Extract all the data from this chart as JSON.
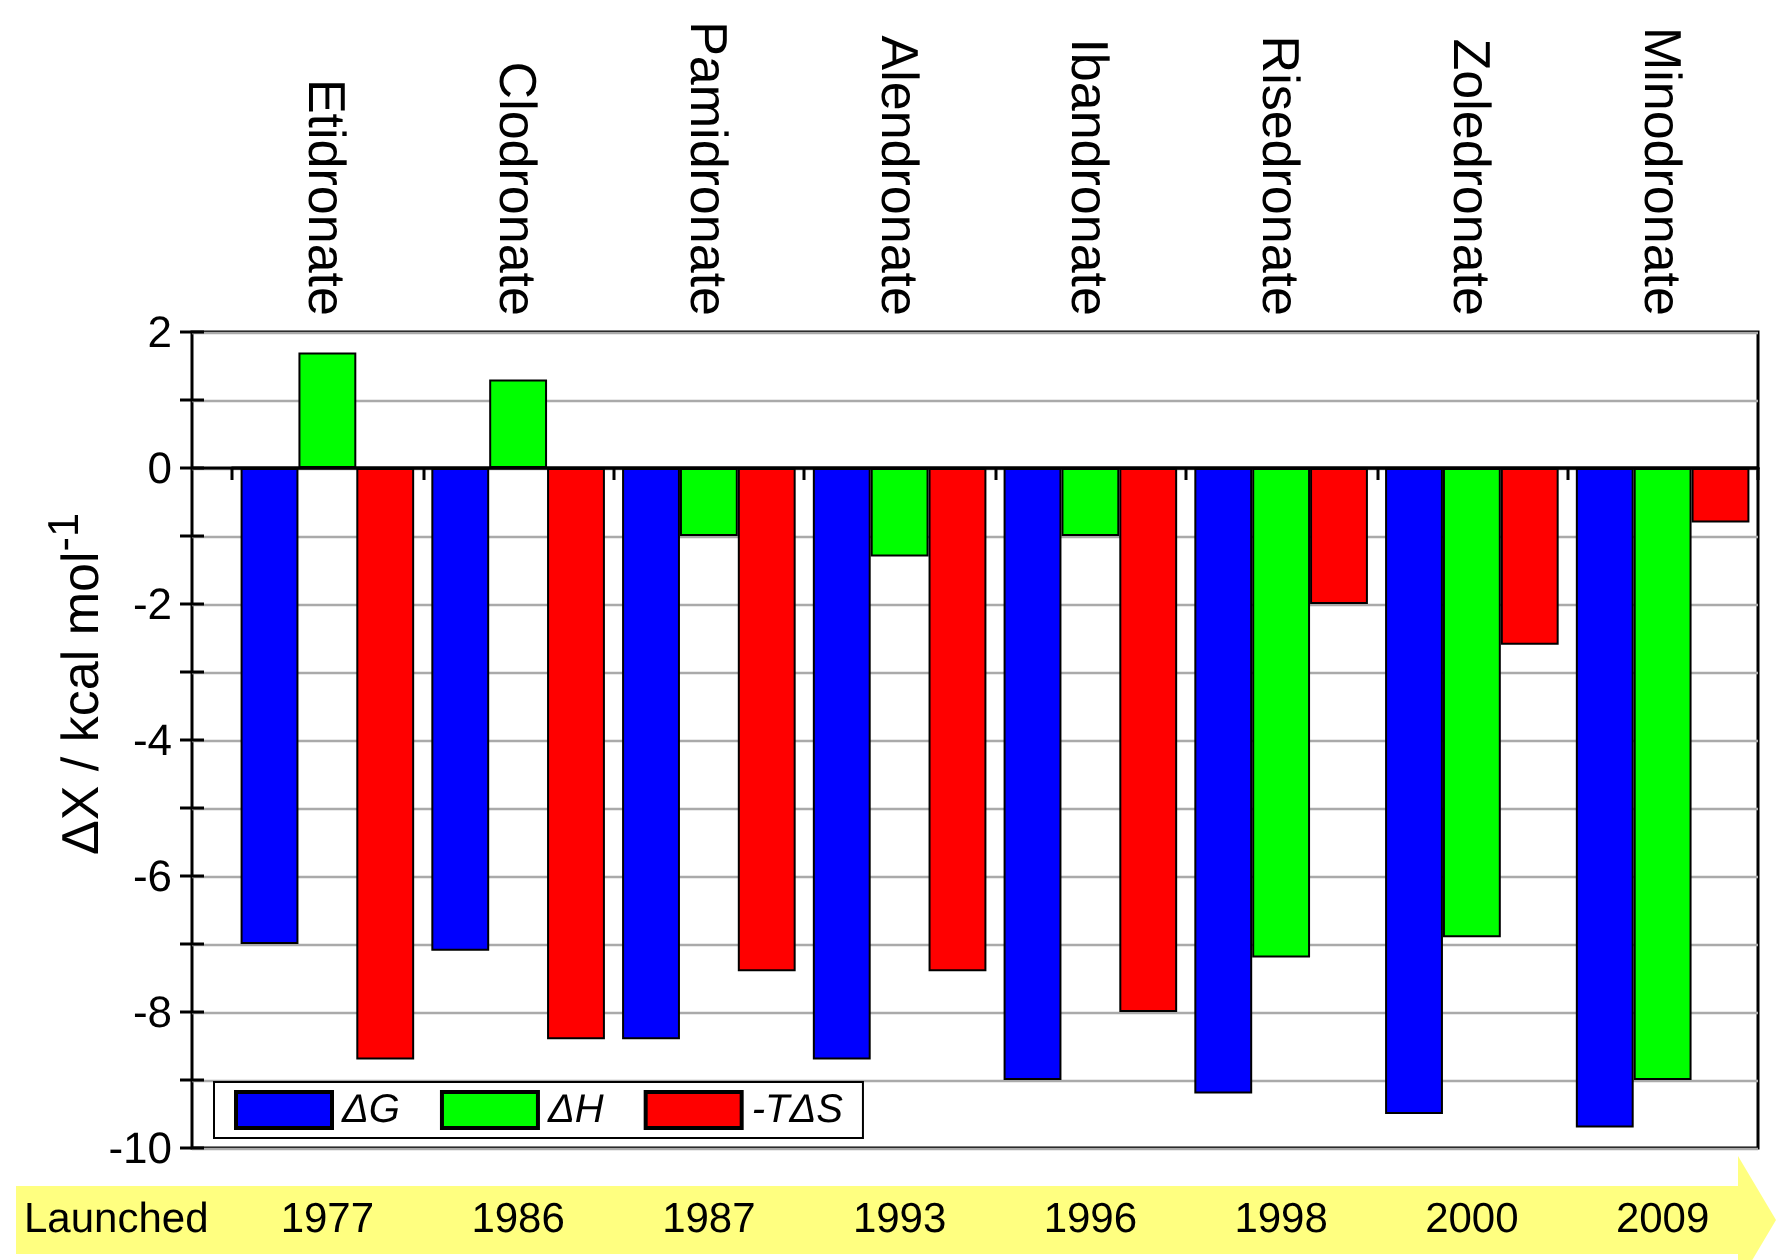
{
  "chart_data": {
    "type": "bar",
    "categories": [
      "Etidronate",
      "Clodronate",
      "Pamidronate",
      "Alendronate",
      "Ibandronate",
      "Risedronate",
      "Zoledronate",
      "Minodronate"
    ],
    "ylabel": "ΔX / kcal mol$^{-1}$",
    "series": [
      {
        "name": "ΔG",
        "color": "#0000ff",
        "values": [
          -7.0,
          -7.1,
          -8.4,
          -8.7,
          -9.0,
          -9.2,
          -9.5,
          -9.7
        ]
      },
      {
        "name": "ΔH",
        "color": "#00ff00",
        "values": [
          1.7,
          1.3,
          -1.0,
          -1.3,
          -1.0,
          -7.2,
          -6.9,
          -9.0
        ]
      },
      {
        "name": "-TΔS",
        "color": "#ff0000",
        "values": [
          -8.7,
          -8.4,
          -7.4,
          -7.4,
          -8.0,
          -2.0,
          -2.6,
          -0.8
        ]
      }
    ],
    "ylim": [
      -10,
      2
    ],
    "yticks": [
      -10,
      {
        "value": -9,
        "label": null
      },
      -8,
      {
        "value": -7,
        "label": null
      },
      -6,
      {
        "value": -5,
        "label": null
      },
      -4,
      {
        "value": -3,
        "label": null
      },
      -2,
      {
        "value": -1,
        "label": null
      },
      0,
      {
        "value": 1,
        "label": null
      },
      2
    ],
    "grid": true,
    "legend": "bottom left",
    "annotations": [
      "Launched",
      "1977",
      "1986",
      "1987",
      "1993",
      "1996",
      "1998",
      "2000",
      "2009"
    ]
  }
}
